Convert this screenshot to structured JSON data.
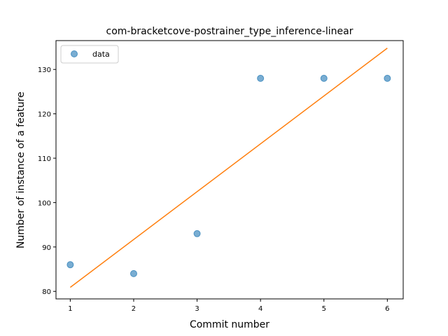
{
  "chart_data": {
    "type": "scatter",
    "title": "com-bracketcove-postrainer_type_inference-linear",
    "xlabel": "Commit number",
    "ylabel": "Number of instance of a feature",
    "xlim": [
      0.775,
      6.25
    ],
    "ylim": [
      78.3,
      136.5
    ],
    "xticks": [
      1,
      2,
      3,
      4,
      5,
      6
    ],
    "yticks": [
      80,
      90,
      100,
      110,
      120,
      130
    ],
    "grid": false,
    "legend_position": "top-left",
    "series": [
      {
        "name": "data",
        "kind": "scatter",
        "color": "#1f77b4",
        "x": [
          1,
          2,
          3,
          4,
          5,
          6
        ],
        "y": [
          86,
          84,
          93,
          128,
          128,
          128
        ]
      },
      {
        "kind": "line",
        "color": "#ff7f0e",
        "x": [
          1,
          6
        ],
        "y": [
          80.9,
          134.8
        ]
      }
    ]
  }
}
